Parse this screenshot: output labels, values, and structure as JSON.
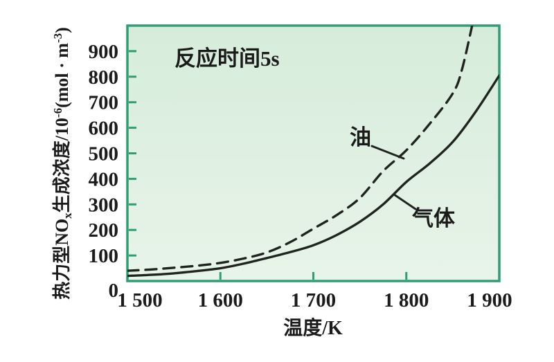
{
  "figure": {
    "annotation": "反应时间5s",
    "x_axis_title": "温度/K",
    "y_axis_title": "热力型NOₓ生成浓度/10⁻⁶(mol·m⁻³)",
    "y_axis_title_parts": [
      {
        "text": "热力型NO"
      },
      {
        "text": "x",
        "script": "sub"
      },
      {
        "text": "生成浓度/10"
      },
      {
        "text": "-6",
        "script": "sup"
      },
      {
        "text": "(mol · m"
      },
      {
        "text": "-3",
        "script": "sup"
      },
      {
        "text": ")"
      }
    ],
    "oil_label": "油",
    "gas_label": "气体",
    "colors": {
      "frame": "#2f9e74",
      "plot_bg_top": "#d6ecda",
      "plot_bg_bottom": "#e8f4e9",
      "curve": "#20241f",
      "text": "#1b1b1b"
    }
  },
  "chart_data": {
    "type": "line",
    "title": "",
    "annotation": "反应时间5s",
    "xlabel": "温度/K",
    "ylabel": "热力型NOₓ生成浓度/10⁻⁶(mol·m⁻³)",
    "xlim": [
      1500,
      1900
    ],
    "ylim": [
      0,
      1000
    ],
    "grid": false,
    "legend_position": "inline curve annotations",
    "x_ticks": [
      1500,
      1600,
      1700,
      1800,
      1900
    ],
    "x_tick_labels": [
      "1 500",
      "1 600",
      "1 700",
      "1 800",
      "1 900"
    ],
    "x_ticks_with_marks": [
      1600,
      1700,
      1800
    ],
    "y_ticks": [
      0,
      100,
      200,
      300,
      400,
      500,
      600,
      700,
      800,
      900
    ],
    "y_tick_labels": [
      "0",
      "100",
      "200",
      "300",
      "400",
      "500",
      "600",
      "700",
      "800",
      "900"
    ],
    "y_ticks_with_marks": [
      100,
      200,
      300,
      400,
      500,
      600,
      700,
      800,
      900
    ],
    "series": [
      {
        "name": "气体",
        "line_style": "solid",
        "x": [
          1500,
          1525,
          1550,
          1575,
          1600,
          1625,
          1650,
          1675,
          1700,
          1725,
          1750,
          1775,
          1800,
          1825,
          1850,
          1875,
          1900
        ],
        "y": [
          20,
          24,
          30,
          39,
          50,
          68,
          90,
          113,
          140,
          180,
          232,
          300,
          388,
          460,
          545,
          665,
          805
        ]
      },
      {
        "name": "油",
        "line_style": "dashed",
        "x": [
          1500,
          1525,
          1550,
          1575,
          1600,
          1625,
          1650,
          1675,
          1700,
          1725,
          1750,
          1775,
          1800,
          1825,
          1850,
          1860,
          1872
        ],
        "y": [
          40,
          45,
          52,
          60,
          71,
          88,
          112,
          152,
          205,
          258,
          325,
          430,
          512,
          615,
          735,
          830,
          1020
        ]
      }
    ]
  }
}
